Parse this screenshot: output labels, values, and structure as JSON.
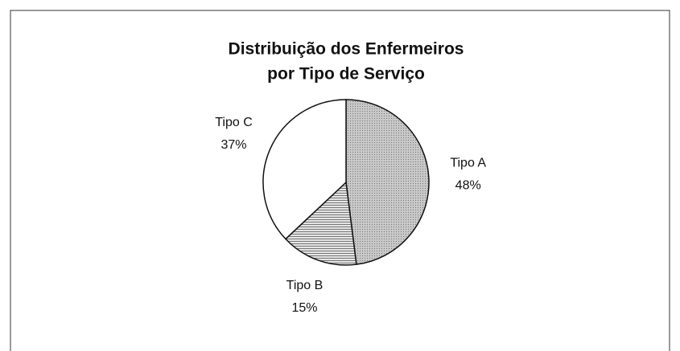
{
  "chart_data": {
    "type": "pie",
    "title": [
      "Distribuição dos Enfermeiros",
      "por Tipo de Serviço"
    ],
    "categories": [
      "Tipo A",
      "Tipo B",
      "Tipo C"
    ],
    "values": [
      48,
      15,
      37
    ],
    "value_labels": [
      "48%",
      "15%",
      "37%"
    ],
    "colors": [
      "#bcbcbc",
      "#d6d6d6",
      "#ffffff"
    ]
  }
}
